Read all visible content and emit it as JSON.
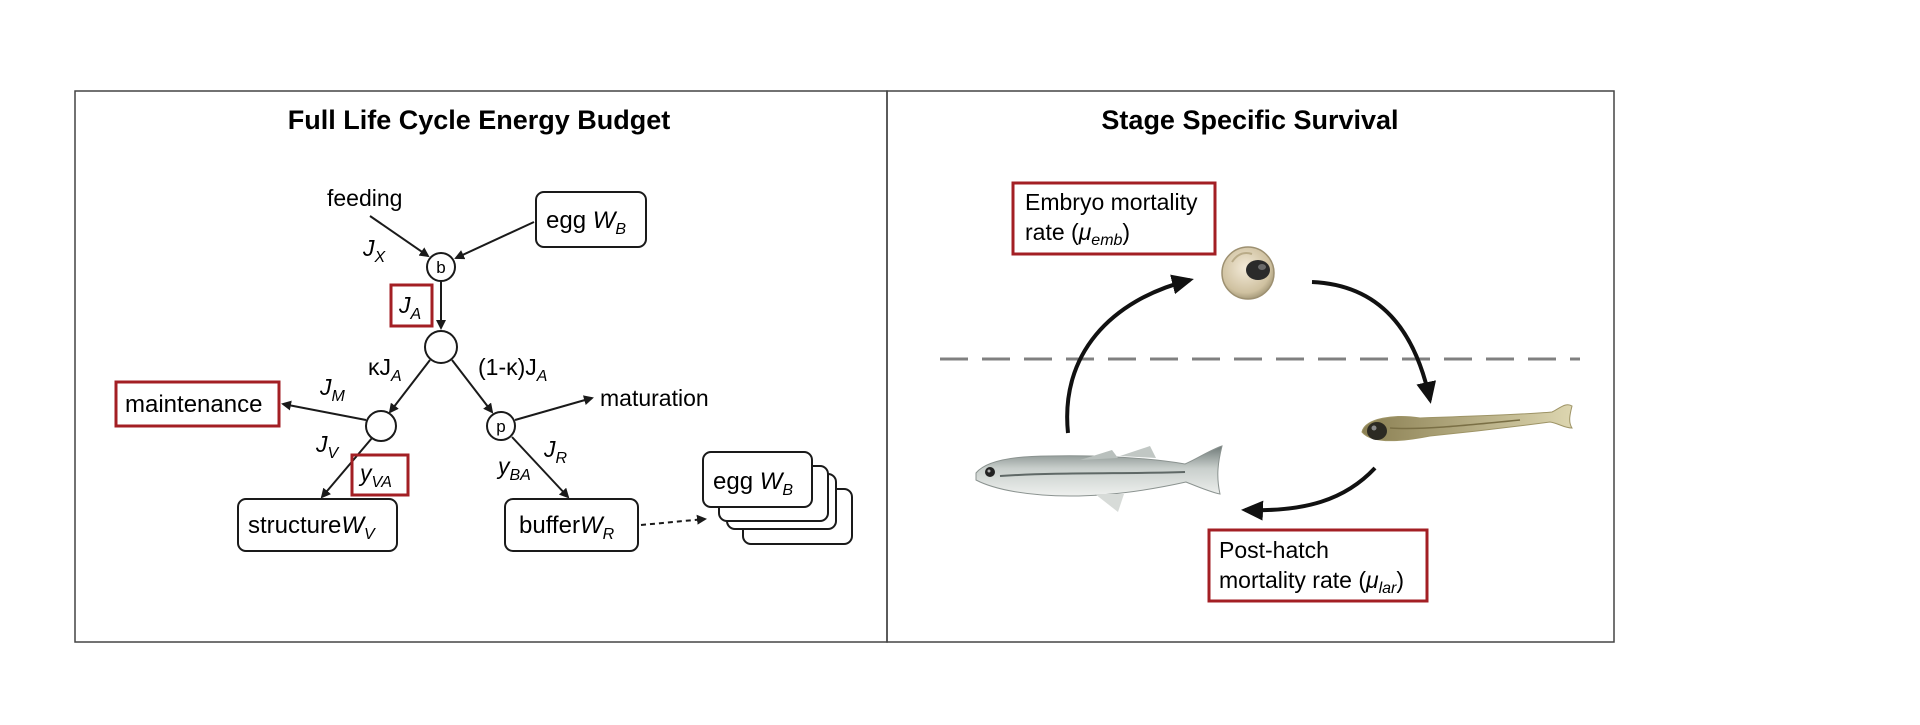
{
  "left_panel": {
    "title": "Full Life Cycle Energy Budget",
    "feeding": "feeding",
    "egg_box": "egg ",
    "egg_var": "W",
    "egg_sub": "B",
    "JX": "J",
    "JX_sub": "X",
    "node_b": "b",
    "JA": "J",
    "JA_sub": "A",
    "kappa_JA": "κJ",
    "kappa_JA_sub": "A",
    "one_minus_kappa": "(1-κ)J",
    "one_minus_kappa_sub": "A",
    "maintenance": "maintenance",
    "JM": "J",
    "JM_sub": "M",
    "maturation": "maturation",
    "node_p": "p",
    "JV": "J",
    "JV_sub": "V",
    "yVA": "y",
    "yVA_sub": "VA",
    "yBA": "y",
    "yBA_sub": "BA",
    "JR": "J",
    "JR_sub": "R",
    "structure": "structure",
    "structure_var": "W",
    "structure_sub": "V",
    "buffer": "buffer",
    "buffer_var": "W",
    "buffer_sub": "R",
    "egg_stack": "egg ",
    "egg_stack_var": "W",
    "egg_stack_sub": "B"
  },
  "right_panel": {
    "title": "Stage Specific Survival",
    "embryo_line1": "Embryo mortality",
    "embryo_line2_pre": "rate (",
    "embryo_mu": "μ",
    "embryo_sub": "emb",
    "embryo_close": ")",
    "posthatch_line1": "Post-hatch",
    "posthatch_line2_pre": "mortality rate (",
    "posthatch_mu": "μ",
    "posthatch_sub": "lar",
    "posthatch_close": ")"
  },
  "colors": {
    "highlight_border": "#a31f24",
    "line": "#1a1a1a",
    "dashed": "#808080"
  }
}
